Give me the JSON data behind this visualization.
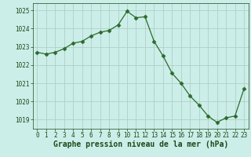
{
  "x": [
    0,
    1,
    2,
    3,
    4,
    5,
    6,
    7,
    8,
    9,
    10,
    11,
    12,
    13,
    14,
    15,
    16,
    17,
    18,
    19,
    20,
    21,
    22,
    23
  ],
  "y": [
    1022.7,
    1022.6,
    1022.7,
    1022.9,
    1023.2,
    1023.3,
    1023.6,
    1023.8,
    1023.9,
    1024.2,
    1024.95,
    1024.6,
    1024.65,
    1023.3,
    1022.5,
    1021.55,
    1021.0,
    1020.3,
    1019.8,
    1019.2,
    1018.85,
    1019.1,
    1019.2,
    1020.7
  ],
  "line_color": "#2d6a2d",
  "marker": "D",
  "marker_size": 2.5,
  "marker_color": "#2d6a2d",
  "bg_color": "#cceee8",
  "grid_color": "#b0cfc8",
  "xlabel": "Graphe pression niveau de la mer (hPa)",
  "xlabel_color": "#1a4a1a",
  "xlabel_fontsize": 7,
  "ylim": [
    1018.5,
    1025.4
  ],
  "xlim": [
    -0.5,
    23.5
  ],
  "yticks": [
    1019,
    1020,
    1021,
    1022,
    1023,
    1024,
    1025
  ],
  "xticks": [
    0,
    1,
    2,
    3,
    4,
    5,
    6,
    7,
    8,
    9,
    10,
    11,
    12,
    13,
    14,
    15,
    16,
    17,
    18,
    19,
    20,
    21,
    22,
    23
  ],
  "tick_label_fontsize": 5.5,
  "tick_label_color": "#1a4a1a"
}
